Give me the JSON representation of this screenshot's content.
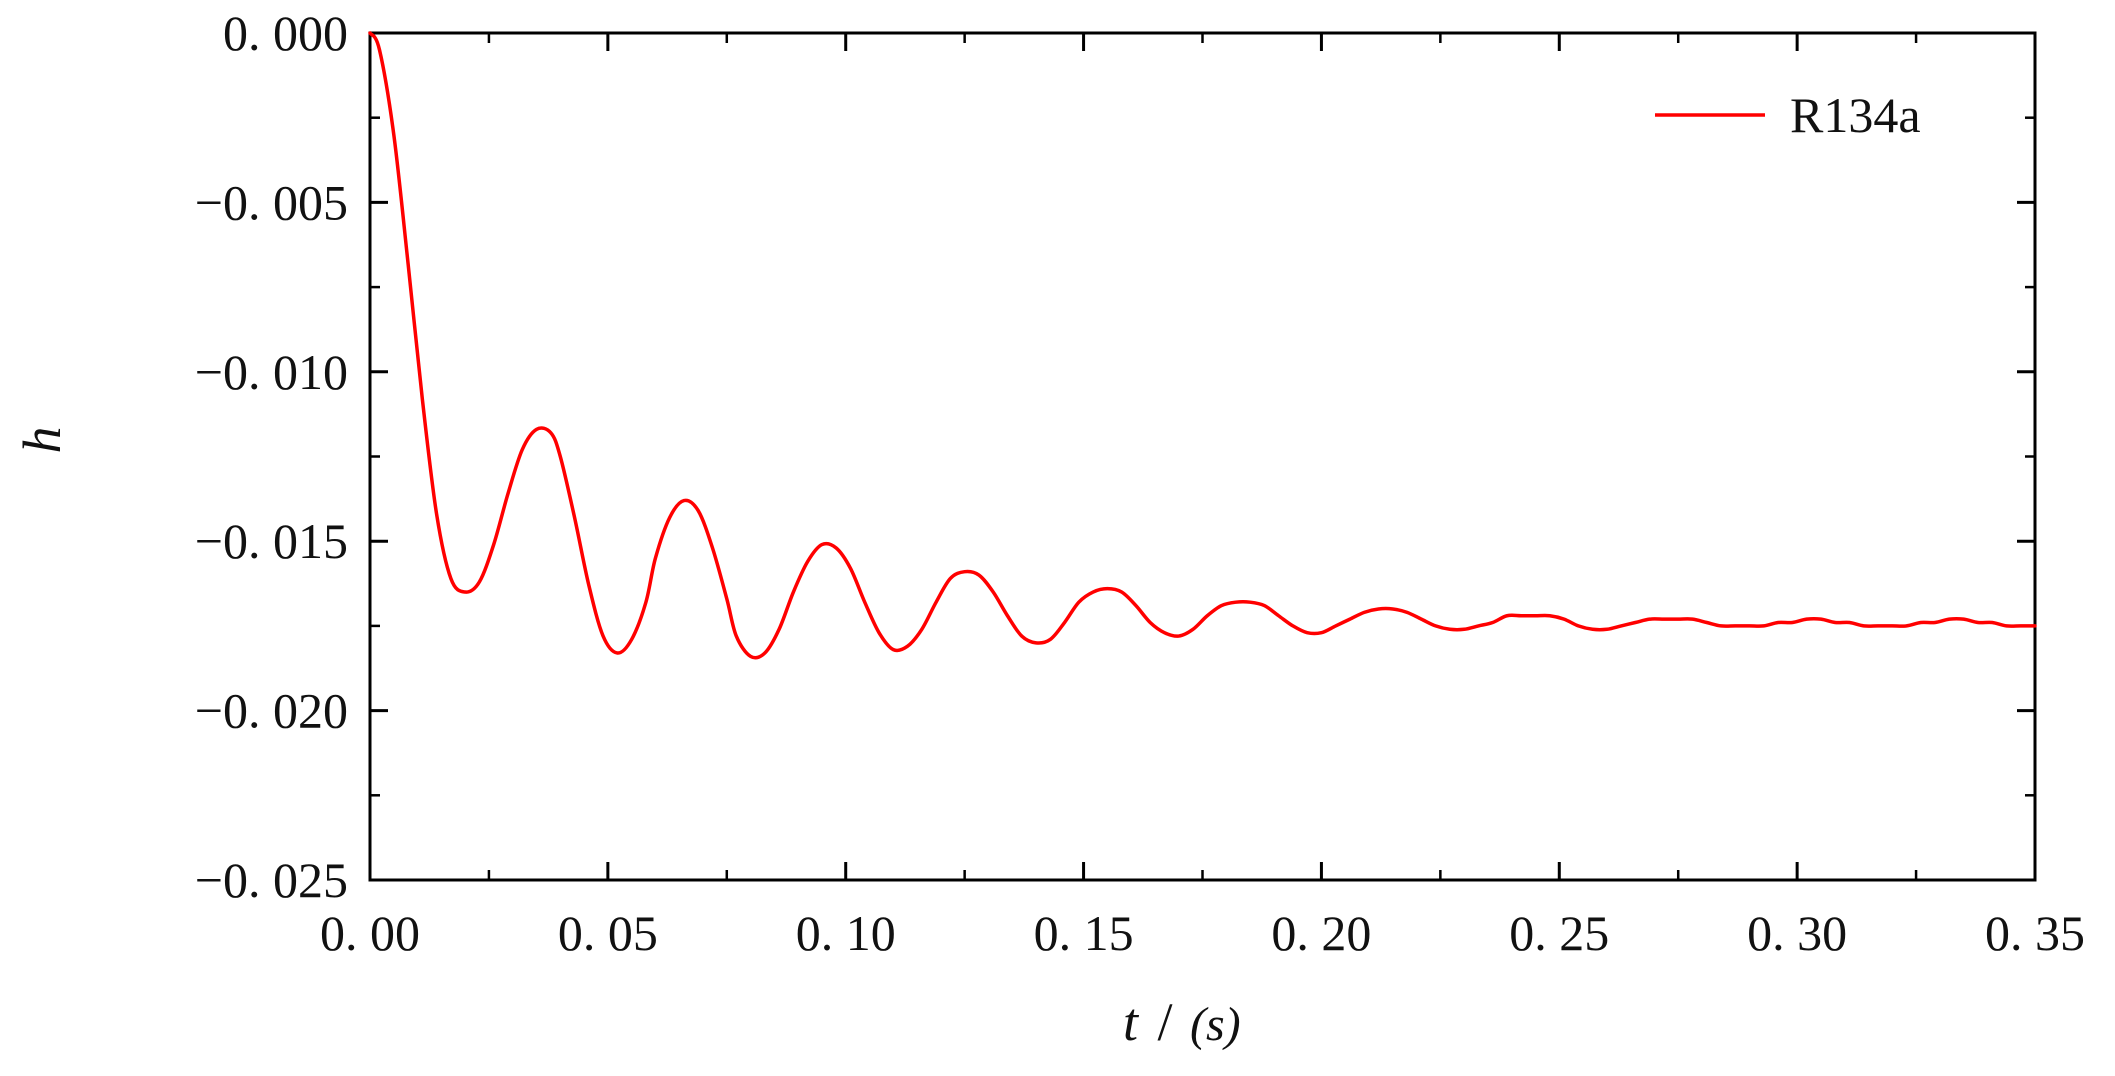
{
  "chart_data": {
    "type": "line",
    "title": "",
    "xlabel": "t",
    "xlabel_sep": "/",
    "xunit": "(s)",
    "ylabel": "h",
    "xlim": [
      0.0,
      0.35
    ],
    "ylim": [
      -0.025,
      0.0
    ],
    "xticks": [
      0.0,
      0.05,
      0.1,
      0.15,
      0.2,
      0.25,
      0.3,
      0.35
    ],
    "xtick_labels": [
      "0. 00",
      "0. 05",
      "0. 10",
      "0. 15",
      "0. 20",
      "0. 25",
      "0. 30",
      "0. 35"
    ],
    "yticks": [
      0.0,
      -0.005,
      -0.01,
      -0.015,
      -0.02,
      -0.025
    ],
    "ytick_labels": [
      "0. 000",
      "−0. 005",
      "−0. 010",
      "−0. 015",
      "−0. 020",
      "−0. 025"
    ],
    "grid": false,
    "legend_position": "top-right",
    "series": [
      {
        "name": "R134a",
        "color": "#ff0000",
        "x": [
          0.0,
          0.002,
          0.005,
          0.008,
          0.011,
          0.014,
          0.017,
          0.02,
          0.023,
          0.026,
          0.029,
          0.032,
          0.035,
          0.038,
          0.04,
          0.043,
          0.046,
          0.049,
          0.052,
          0.055,
          0.058,
          0.06,
          0.063,
          0.066,
          0.069,
          0.072,
          0.075,
          0.077,
          0.08,
          0.083,
          0.086,
          0.089,
          0.092,
          0.095,
          0.098,
          0.101,
          0.104,
          0.107,
          0.11,
          0.113,
          0.116,
          0.119,
          0.122,
          0.125,
          0.128,
          0.131,
          0.134,
          0.137,
          0.14,
          0.143,
          0.146,
          0.149,
          0.152,
          0.155,
          0.158,
          0.161,
          0.164,
          0.167,
          0.17,
          0.173,
          0.176,
          0.179,
          0.182,
          0.185,
          0.188,
          0.191,
          0.194,
          0.197,
          0.2,
          0.203,
          0.206,
          0.209,
          0.212,
          0.215,
          0.218,
          0.221,
          0.224,
          0.227,
          0.23,
          0.233,
          0.236,
          0.239,
          0.242,
          0.245,
          0.248,
          0.251,
          0.254,
          0.257,
          0.26,
          0.263,
          0.266,
          0.269,
          0.272,
          0.275,
          0.278,
          0.281,
          0.284,
          0.287,
          0.29,
          0.293,
          0.296,
          0.299,
          0.302,
          0.305,
          0.308,
          0.311,
          0.314,
          0.317,
          0.32,
          0.323,
          0.326,
          0.329,
          0.332,
          0.335,
          0.338,
          0.341,
          0.344,
          0.347,
          0.35
        ],
        "values": [
          0.0,
          -0.0005,
          -0.003,
          -0.0068,
          -0.0108,
          -0.0142,
          -0.0161,
          -0.0165,
          -0.0162,
          -0.0151,
          -0.0136,
          -0.0123,
          -0.0117,
          -0.0118,
          -0.0125,
          -0.0143,
          -0.0163,
          -0.0178,
          -0.0183,
          -0.0179,
          -0.0168,
          -0.0155,
          -0.0143,
          -0.0138,
          -0.0141,
          -0.0152,
          -0.0167,
          -0.0178,
          -0.0184,
          -0.0183,
          -0.0176,
          -0.0165,
          -0.0156,
          -0.0151,
          -0.0152,
          -0.0158,
          -0.0168,
          -0.0177,
          -0.0182,
          -0.0181,
          -0.0176,
          -0.0168,
          -0.0161,
          -0.0159,
          -0.016,
          -0.0165,
          -0.0172,
          -0.0178,
          -0.018,
          -0.0179,
          -0.0174,
          -0.0168,
          -0.0165,
          -0.0164,
          -0.0165,
          -0.0169,
          -0.0174,
          -0.0177,
          -0.0178,
          -0.0176,
          -0.0172,
          -0.0169,
          -0.0168,
          -0.0168,
          -0.0169,
          -0.0172,
          -0.0175,
          -0.0177,
          -0.0177,
          -0.0175,
          -0.0173,
          -0.0171,
          -0.017,
          -0.017,
          -0.0171,
          -0.0173,
          -0.0175,
          -0.0176,
          -0.0176,
          -0.0175,
          -0.0174,
          -0.0172,
          -0.0172,
          -0.0172,
          -0.0172,
          -0.0173,
          -0.0175,
          -0.0176,
          -0.0176,
          -0.0175,
          -0.0174,
          -0.0173,
          -0.0173,
          -0.0173,
          -0.0173,
          -0.0174,
          -0.0175,
          -0.0175,
          -0.0175,
          -0.0175,
          -0.0174,
          -0.0174,
          -0.0173,
          -0.0173,
          -0.0174,
          -0.0174,
          -0.0175,
          -0.0175,
          -0.0175,
          -0.0175,
          -0.0174,
          -0.0174,
          -0.0173,
          -0.0173,
          -0.0174,
          -0.0174,
          -0.0175,
          -0.0175,
          -0.0175
        ]
      }
    ]
  }
}
